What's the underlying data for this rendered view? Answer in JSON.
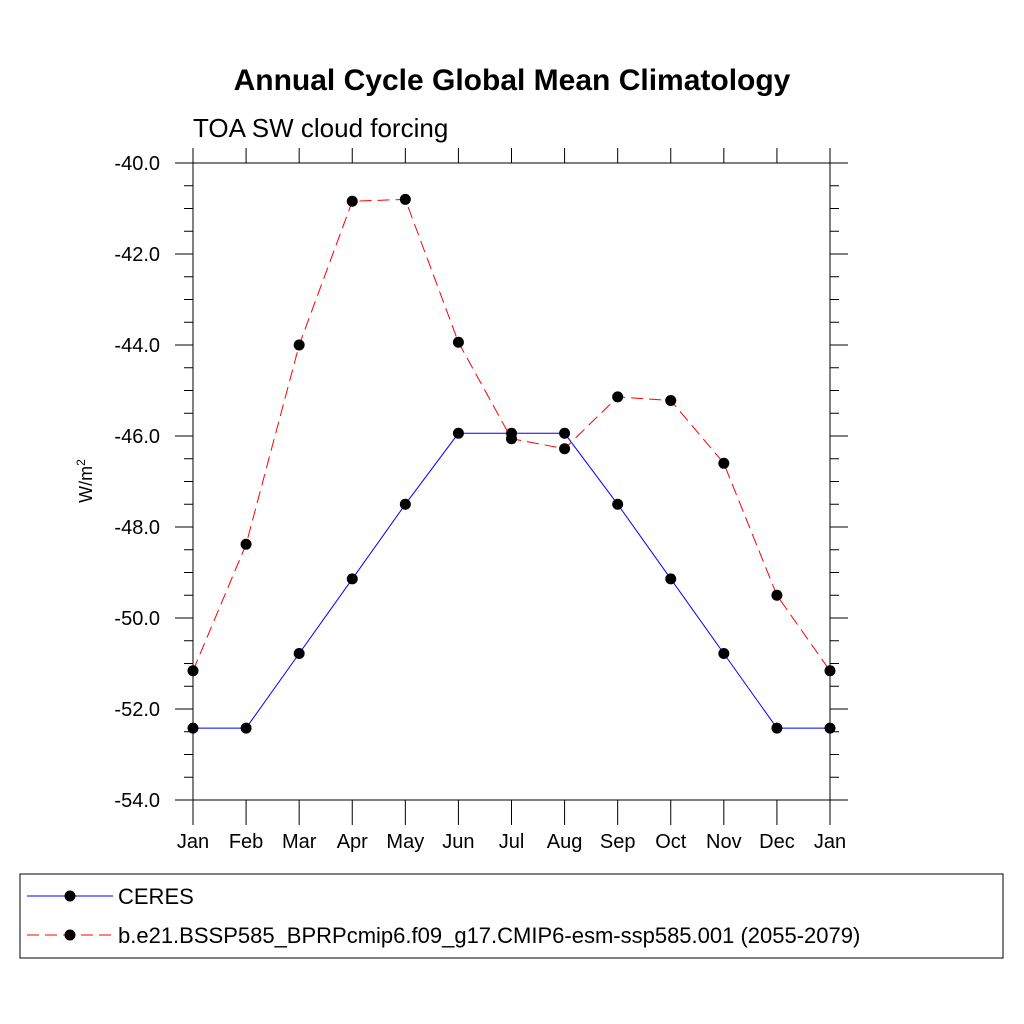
{
  "chart_data": {
    "type": "line",
    "title": "Annual Cycle Global Mean Climatology",
    "subtitle": "TOA SW cloud forcing",
    "xlabel": "",
    "ylabel": "W/m",
    "ylabel_superscript": "2",
    "categories": [
      "Jan",
      "Feb",
      "Mar",
      "Apr",
      "May",
      "Jun",
      "Jul",
      "Aug",
      "Sep",
      "Oct",
      "Nov",
      "Dec",
      "Jan"
    ],
    "ylim": [
      -54.0,
      -40.0
    ],
    "yticks": [
      "-40.0",
      "-42.0",
      "-44.0",
      "-46.0",
      "-48.0",
      "-50.0",
      "-52.0",
      "-54.0"
    ],
    "grid": false,
    "legend_position": "bottom",
    "series": [
      {
        "name": "CERES",
        "color": "#0000ff",
        "style": "solid",
        "values": [
          -52.42,
          -52.42,
          -50.78,
          -49.14,
          -47.5,
          -45.94,
          -45.94,
          -45.94,
          -47.5,
          -49.14,
          -50.78,
          -52.42,
          -52.42
        ]
      },
      {
        "name": "b.e21.BSSP585_BPRPcmip6.f09_g17.CMIP6-esm-ssp585.001 (2055-2079)",
        "color": "#ff0000",
        "style": "dashed",
        "values": [
          -51.16,
          -48.38,
          -44.0,
          -40.84,
          -40.8,
          -43.94,
          -46.06,
          -46.28,
          -45.14,
          -45.22,
          -46.6,
          -49.5,
          -51.16
        ]
      }
    ]
  }
}
